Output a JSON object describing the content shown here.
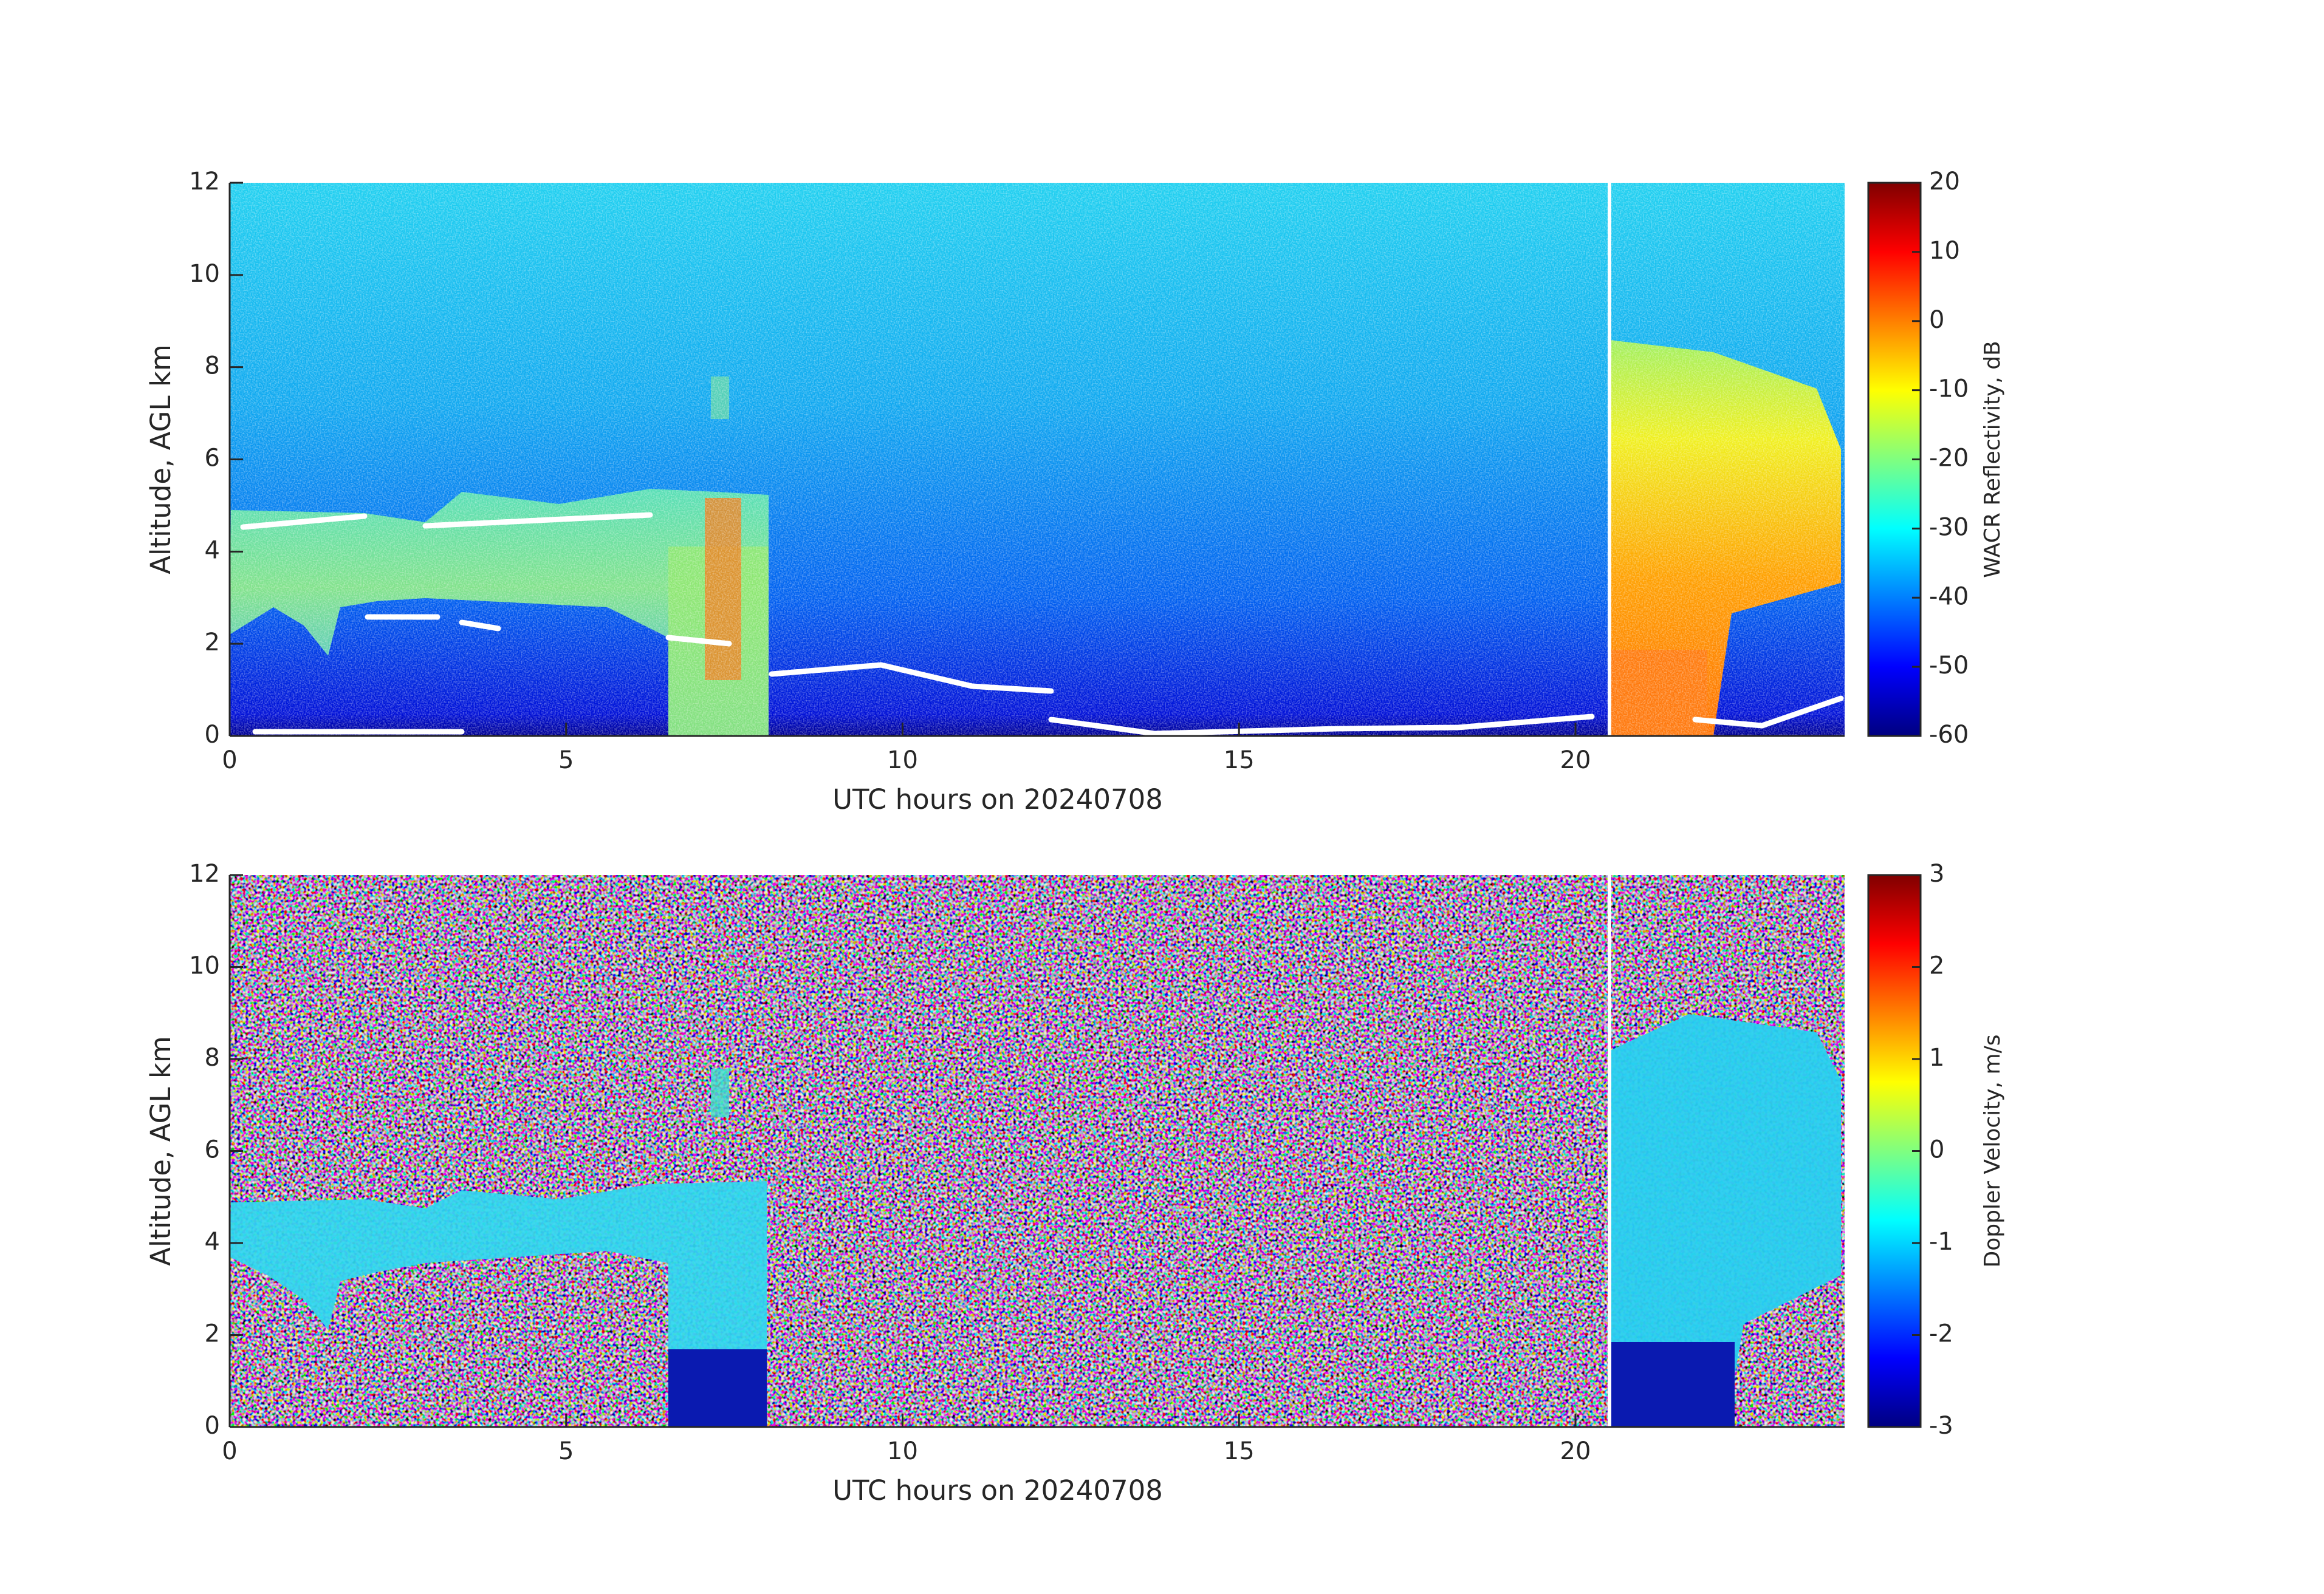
{
  "chart_data": [
    {
      "type": "heatmap",
      "xlabel": "UTC hours on 20240708",
      "ylabel": "Altitude, AGL km",
      "xlim": [
        0,
        24
      ],
      "ylim": [
        0,
        12
      ],
      "xticks": [
        0,
        5,
        10,
        15,
        20
      ],
      "yticks": [
        0,
        2,
        4,
        6,
        8,
        10,
        12
      ],
      "colormap": "jet",
      "colorbar": {
        "label": "WACR Reflectivity, dB",
        "lim": [
          -60,
          20
        ],
        "ticks": [
          -60,
          -50,
          -40,
          -30,
          -20,
          -10,
          0,
          10,
          20
        ]
      }
    },
    {
      "type": "heatmap",
      "xlabel": "UTC hours on 20240708",
      "ylabel": "Altitude, AGL km",
      "xlim": [
        0,
        24
      ],
      "ylim": [
        0,
        12
      ],
      "xticks": [
        0,
        5,
        10,
        15,
        20
      ],
      "yticks": [
        0,
        2,
        4,
        6,
        8,
        10,
        12
      ],
      "colormap": "jet",
      "colorbar": {
        "label": "Doppler Velocity, m/s",
        "lim": [
          -3,
          3
        ],
        "ticks": [
          -3,
          -2,
          -1,
          0,
          1,
          2,
          3
        ]
      }
    }
  ]
}
